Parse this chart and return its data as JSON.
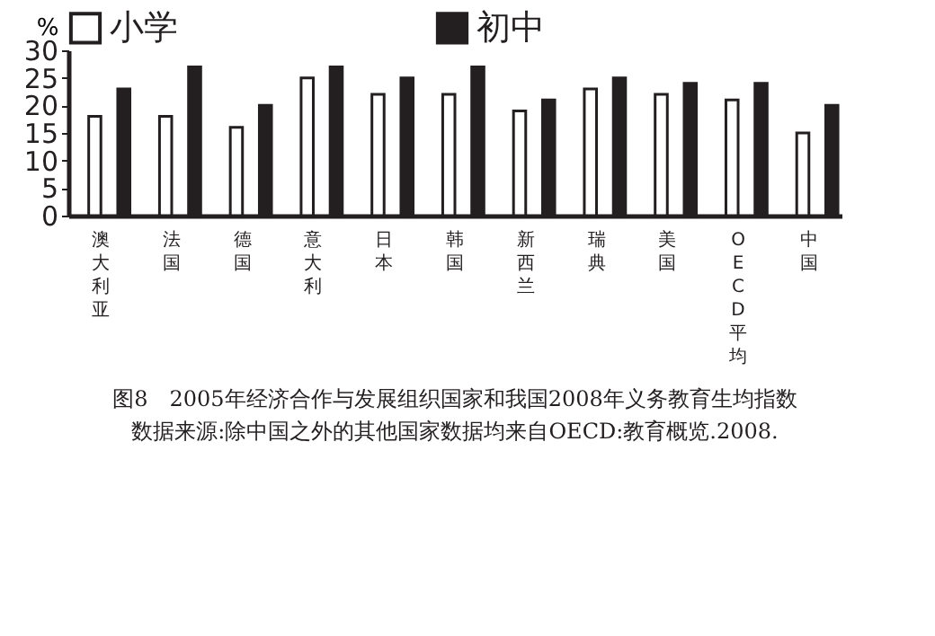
{
  "chart_data": {
    "type": "bar",
    "title": "图8　2005年经济合作与发展组织国家和我国2008年义务教育生均指数",
    "ylabel": "%",
    "annotations": [
      "数据来源:除中国之外的其他国家数据均来自OECD:教育概览.2008."
    ],
    "categories": [
      "澳大利亚",
      "法国",
      "德国",
      "意大利",
      "日本",
      "韩国",
      "新西兰",
      "瑞典",
      "美国",
      "OECD平均",
      "中国"
    ],
    "series": [
      {
        "name": "小学",
        "color": "#ffffff",
        "values": [
          18,
          18,
          16,
          25,
          22,
          22,
          19,
          23,
          22,
          21,
          15
        ]
      },
      {
        "name": "初中",
        "color": "#231f20",
        "values": [
          23,
          27,
          20,
          27,
          25,
          27,
          21,
          25,
          24,
          24,
          20
        ]
      }
    ],
    "ylim": [
      0,
      30
    ],
    "yticks": [
      0,
      5,
      10,
      15,
      20,
      25,
      30
    ],
    "grid": false,
    "legend": "top"
  }
}
